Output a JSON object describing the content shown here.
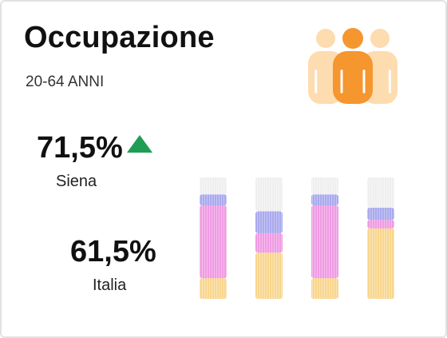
{
  "header": {
    "title": "Occupazione",
    "subtitle": "20-64 ANNI"
  },
  "icons": {
    "people": "people-group-icon",
    "trend": "trend-up-icon"
  },
  "colors": {
    "person_center": "#f5962e",
    "person_side": "#fddcb0",
    "trend_up": "#1f9d55",
    "segment_blue": "#a9a9ee",
    "segment_pink": "#ef9be3",
    "segment_yellow": "#f9d68e",
    "segment_gray": "#efefef"
  },
  "stats": {
    "siena": {
      "value": "71,5%",
      "label": "Siena",
      "trend": "up"
    },
    "italia": {
      "value": "61,5%",
      "label": "Italia"
    }
  },
  "chart_data": {
    "type": "bar",
    "stacked": true,
    "categories": [
      "",
      "",
      "",
      ""
    ],
    "segments_order": [
      "segment_yellow",
      "segment_pink",
      "segment_blue",
      "segment_gray"
    ],
    "bars": [
      [
        0.17,
        0.6,
        0.09,
        0.14
      ],
      [
        0.38,
        0.16,
        0.18,
        0.28
      ],
      [
        0.17,
        0.6,
        0.09,
        0.14
      ],
      [
        0.58,
        0.07,
        0.1,
        0.25
      ]
    ]
  }
}
